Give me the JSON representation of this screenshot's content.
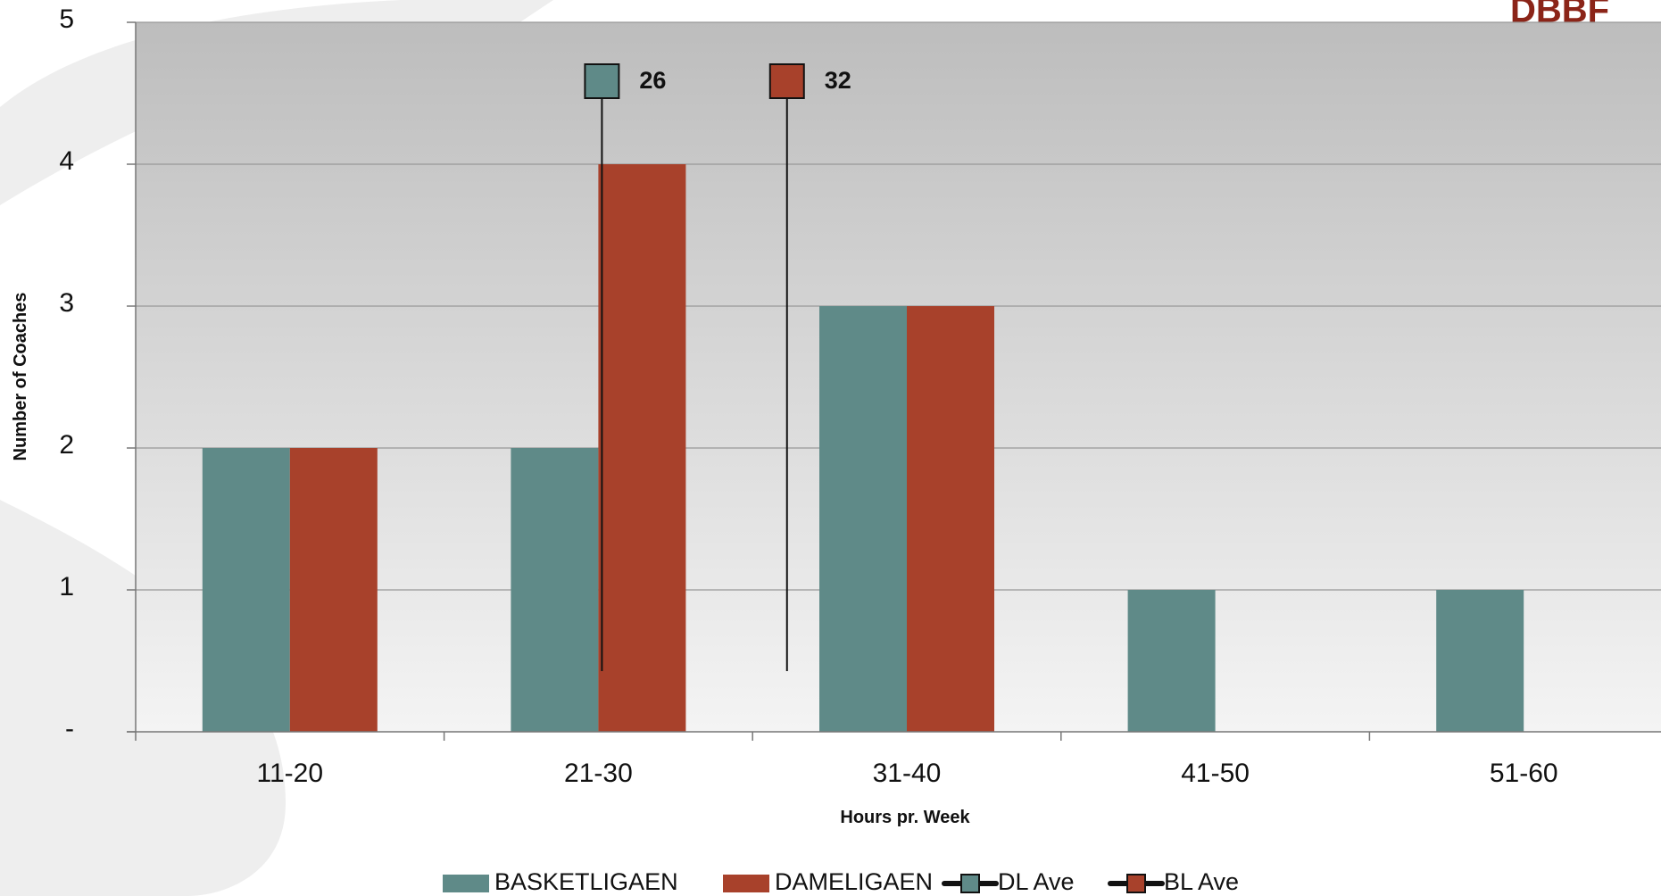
{
  "logo": {
    "text": "DBBF"
  },
  "colors": {
    "basketligaen": "#5f8a88",
    "dameligaen": "#a8412b",
    "plot_top": "#bdbdbd",
    "plot_bottom": "#f4f4f4",
    "grid": "#999999",
    "axis": "#777777",
    "swoosh": "#eeeeee"
  },
  "chart_data": {
    "type": "bar",
    "title": "",
    "xlabel": "Hours pr. Week",
    "ylabel": "Number of Coaches",
    "categories": [
      "11-20",
      "21-30",
      "31-40",
      "41-50",
      "51-60"
    ],
    "ylim": [
      0,
      5
    ],
    "yticks": [
      {
        "value": 0,
        "label": "-"
      },
      {
        "value": 1,
        "label": "1"
      },
      {
        "value": 2,
        "label": "2"
      },
      {
        "value": 3,
        "label": "3"
      },
      {
        "value": 4,
        "label": "4"
      },
      {
        "value": 5,
        "label": "5"
      }
    ],
    "grid": true,
    "legend_position": "bottom",
    "series": [
      {
        "name": "BASKETLIGAEN",
        "type": "bar",
        "color": "#5f8a88",
        "values": [
          2,
          2,
          3,
          1,
          1
        ]
      },
      {
        "name": "DAMELIGAEN",
        "type": "bar",
        "color": "#a8412b",
        "values": [
          2,
          4,
          3,
          0,
          0
        ]
      }
    ],
    "averages": [
      {
        "name": "DL Ave",
        "value": 26,
        "label": "26",
        "color": "#5f8a88"
      },
      {
        "name": "BL Ave",
        "value": 32,
        "label": "32",
        "color": "#a8412b"
      }
    ]
  }
}
